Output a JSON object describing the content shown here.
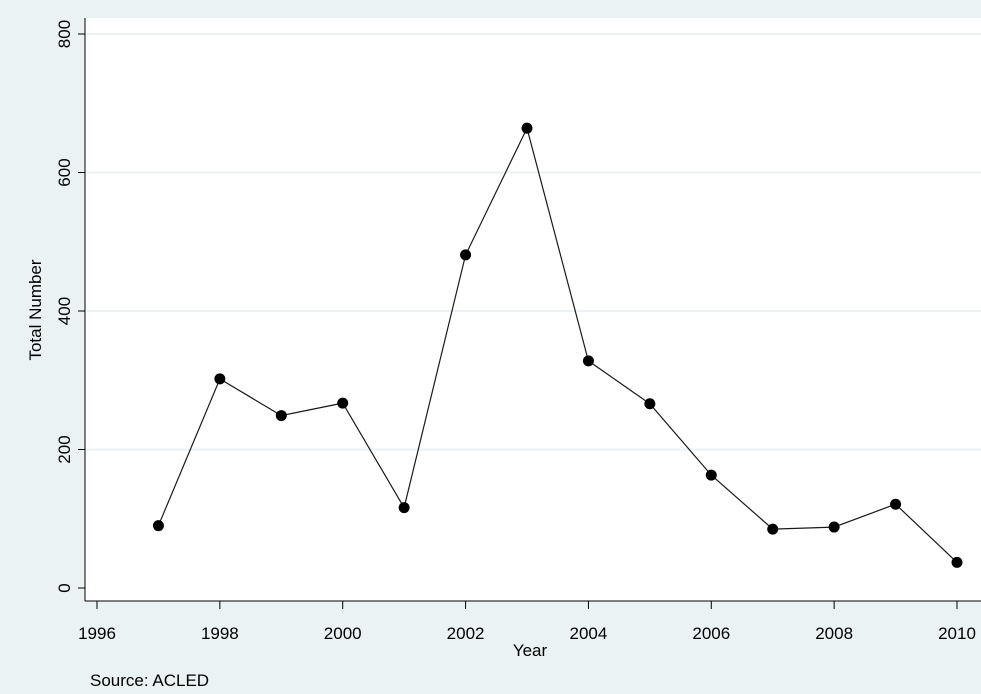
{
  "chart_data": {
    "type": "line",
    "title": "",
    "xlabel": "Year",
    "ylabel": "Total Number",
    "note": "Source: ACLED",
    "x": [
      1997,
      1998,
      1999,
      2000,
      2001,
      2002,
      2003,
      2004,
      2005,
      2006,
      2007,
      2008,
      2009,
      2010
    ],
    "series": [
      {
        "values": [
          90,
          302,
          249,
          267,
          116,
          481,
          664,
          328,
          266,
          163,
          85,
          88,
          121,
          37
        ]
      }
    ],
    "xlim": [
      1996,
      2010
    ],
    "ylim": [
      0,
      800
    ],
    "xticks": [
      "1996",
      "1998",
      "2000",
      "2002",
      "2004",
      "2006",
      "2008",
      "2010"
    ],
    "yticks": [
      "0",
      "200",
      "400",
      "600",
      "800"
    ],
    "grid": true,
    "colors": {
      "background": "#eaf2f3",
      "plot_area": "#ffffff",
      "gridline": "#eaf2f3",
      "line": "#1a1a1a",
      "marker": "#000000"
    }
  }
}
